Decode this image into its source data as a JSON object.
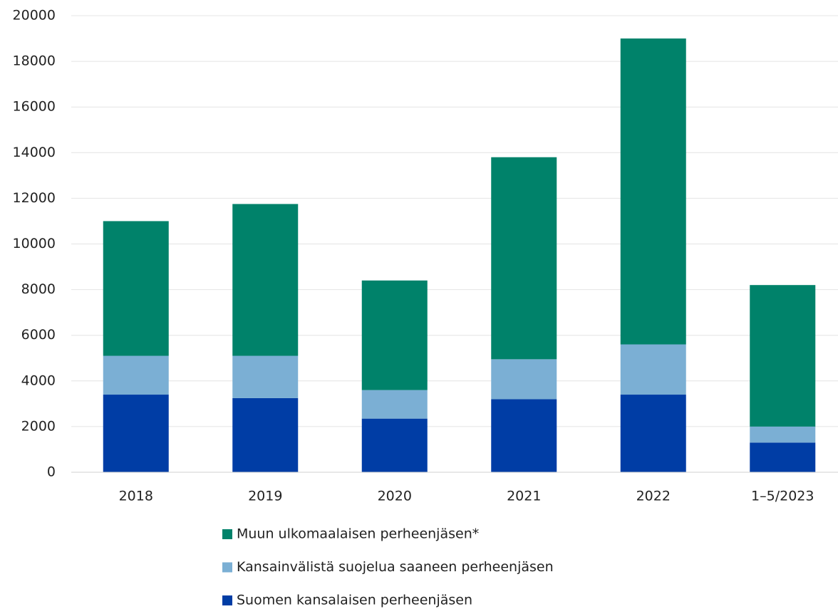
{
  "chart_data": {
    "type": "stacked_bar",
    "categories": [
      "2018",
      "2019",
      "2020",
      "2021",
      "2022",
      "1–5/2023"
    ],
    "series": [
      {
        "name": "Suomen kansalaisen perheenjäsen",
        "color": "#003da5",
        "values": [
          3400,
          3250,
          2350,
          3200,
          3400,
          1300
        ]
      },
      {
        "name": "Kansainvälistä suojelua saaneen perheenjäsen",
        "color": "#7bafd4",
        "values": [
          1700,
          1850,
          1250,
          1750,
          2200,
          700
        ]
      },
      {
        "name": "Muun ulkomaalaisen perheenjäsen*",
        "color": "#00826a",
        "values": [
          5900,
          6650,
          4800,
          8850,
          13400,
          6200
        ]
      }
    ],
    "ylim": [
      0,
      20000
    ],
    "yticks": [
      0,
      2000,
      4000,
      6000,
      8000,
      10000,
      12000,
      14000,
      16000,
      18000,
      20000
    ],
    "grid": true,
    "legend": "bottom"
  }
}
